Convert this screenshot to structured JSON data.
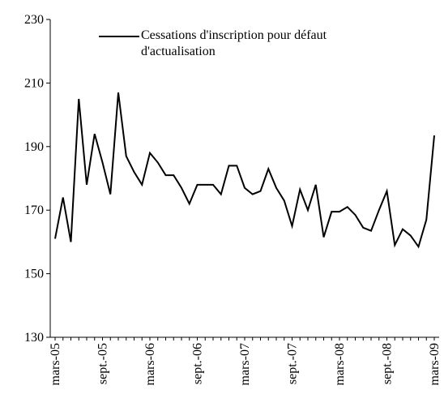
{
  "chart_data": {
    "type": "line",
    "categories": [
      "mars-05",
      null,
      null,
      null,
      null,
      null,
      "sept.-05",
      null,
      null,
      null,
      null,
      null,
      "mars-06",
      null,
      null,
      null,
      null,
      null,
      "sept.-06",
      null,
      null,
      null,
      null,
      null,
      "mars-07",
      null,
      null,
      null,
      null,
      null,
      "sept.-07",
      null,
      null,
      null,
      null,
      null,
      "mars-08",
      null,
      null,
      null,
      null,
      null,
      "sept.-08",
      null,
      null,
      null,
      null,
      null,
      "mars-09"
    ],
    "series": [
      {
        "name": "Cessations d'inscription pour défaut d'actualisation",
        "color": "#000000",
        "values": [
          161,
          174,
          160,
          205,
          178,
          194,
          185,
          175,
          207,
          187,
          182,
          178,
          188,
          185,
          181,
          181,
          177,
          172,
          178,
          178,
          178,
          175,
          184,
          184,
          177,
          175,
          176,
          183,
          177,
          173,
          165,
          176.5,
          170,
          178,
          161.5,
          169.5,
          169.5,
          171,
          168.5,
          164.5,
          163.5,
          170,
          176,
          159,
          164,
          162,
          158.5,
          167,
          193.5
        ]
      }
    ],
    "ylim": [
      130,
      230
    ],
    "yticks": [
      130,
      150,
      170,
      190,
      210,
      230
    ],
    "grid": false,
    "legend": "top"
  }
}
